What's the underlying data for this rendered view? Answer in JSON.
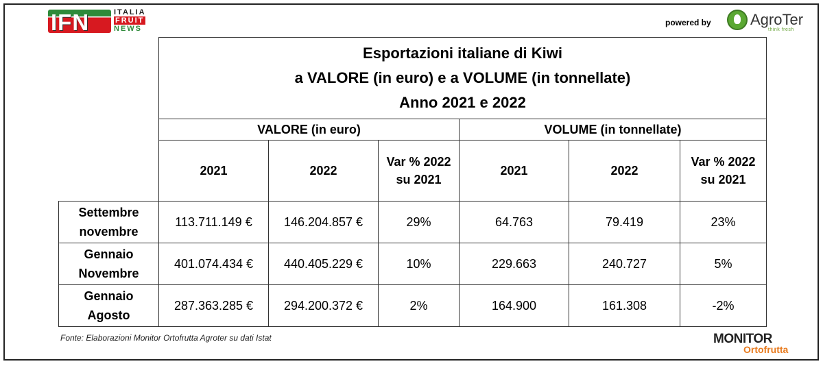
{
  "header": {
    "ifn_logo": {
      "letters": "IFN",
      "line1": "ITALIA",
      "line2": "FRUIT",
      "line3": "NEWS"
    },
    "powered_by": "powered by",
    "agroter_logo": {
      "name": "AgroTer",
      "tagline": "think fresh",
      "icon": "tree-icon"
    }
  },
  "table": {
    "title_lines": [
      "Esportazioni italiane di Kiwi",
      "a VALORE (in euro) e a VOLUME (in tonnellate)",
      "Anno 2021 e 2022"
    ],
    "groups": [
      "VALORE (in euro)",
      "VOLUME (in tonnellate)"
    ],
    "columns": [
      {
        "line1": "2021",
        "line2": ""
      },
      {
        "line1": "2022",
        "line2": ""
      },
      {
        "line1": "Var % 2022",
        "line2": "su 2021"
      },
      {
        "line1": "2021",
        "line2": ""
      },
      {
        "line1": "2022",
        "line2": ""
      },
      {
        "line1": "Var % 2022",
        "line2": "su 2021"
      }
    ],
    "rows": [
      {
        "label1": "Settembre",
        "label2": "novembre",
        "values": [
          "113.711.149 €",
          "146.204.857 €",
          "29%",
          "64.763",
          "79.419",
          "23%"
        ]
      },
      {
        "label1": "Gennaio",
        "label2": "Novembre",
        "values": [
          "401.074.434 €",
          "440.405.229 €",
          "10%",
          "229.663",
          "240.727",
          "5%"
        ]
      },
      {
        "label1": "Gennaio",
        "label2": "Agosto",
        "values": [
          "287.363.285 €",
          "294.200.372 €",
          "2%",
          "164.900",
          "161.308",
          "-2%"
        ]
      }
    ]
  },
  "footer": {
    "source": "Fonte: Elaborazioni Monitor Ortofrutta Agroter su dati Istat",
    "monitor_logo": {
      "top": "MONITOR",
      "bottom": "Ortofrutta"
    }
  },
  "colors": {
    "ifn_green": "#2e8a3a",
    "ifn_red": "#d71920",
    "agroter_green": "#5aa832",
    "monitor_orange": "#e87a1d"
  }
}
